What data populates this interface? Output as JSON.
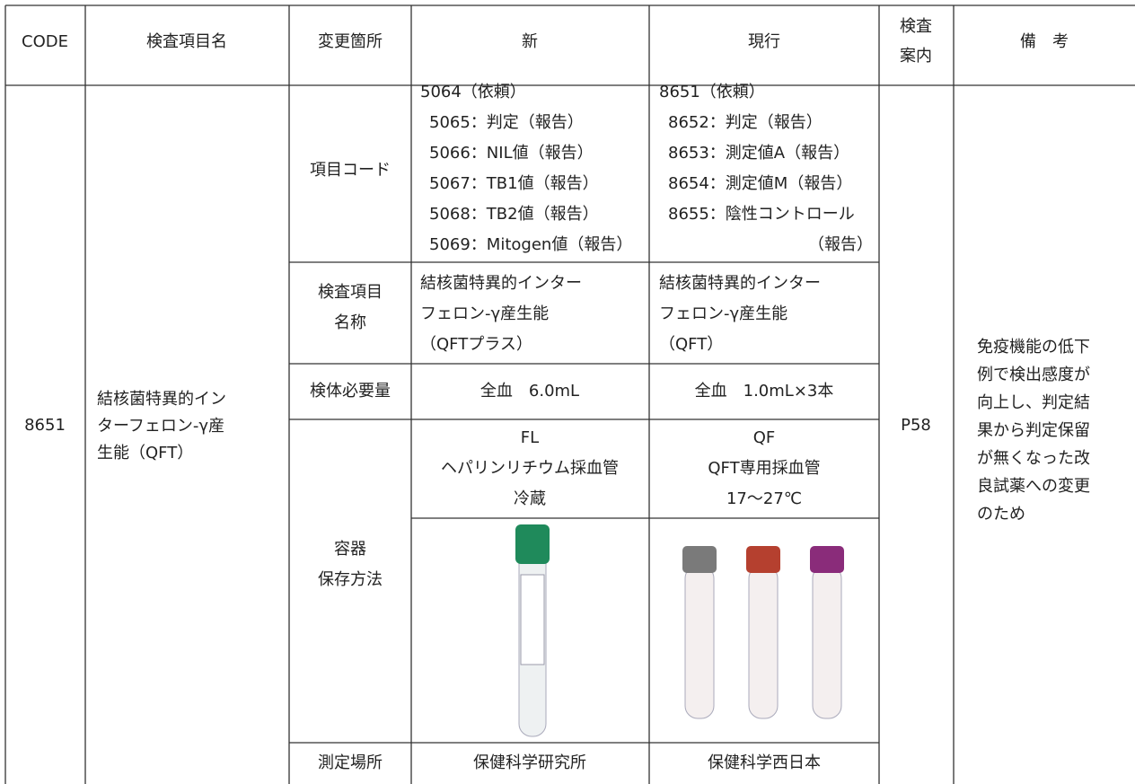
{
  "header": [
    "CODE",
    "検査項目名",
    "変更箇所",
    "新",
    "現行",
    [
      "検査",
      "案内"
    ],
    "備　考"
  ],
  "record": {
    "code": "8651",
    "name": [
      "結核菌特異的イン",
      "ターフェロン-γ産",
      "生能（QFT）"
    ],
    "guide": "P58",
    "remarks": [
      "免疫機能の低下",
      "例で検出感度が",
      "向上し、判定結",
      "果から判定保留",
      "が無くなった改",
      "良試薬への変更",
      "のため"
    ],
    "changes": [
      {
        "field": [
          "項目コード"
        ],
        "new": [
          "5064（依頼）",
          "5065：判定（報告）",
          "5066：NIL値（報告）",
          "5067：TB1値（報告）",
          "5068：TB2値（報告）",
          "5069：Mitogen値（報告）"
        ],
        "current": [
          "8651（依頼）",
          "8652：判定（報告）",
          "8653：測定値A（報告）",
          "8654：測定値M（報告）",
          "8655：陰性コントロール",
          "（報告）"
        ]
      },
      {
        "field": [
          "検査項目",
          "名称"
        ],
        "new": [
          "結核菌特異的インター",
          "フェロン-γ産生能",
          "（QFTプラス）"
        ],
        "current": [
          "結核菌特異的インター",
          "フェロン-γ産生能",
          "（QFT）"
        ]
      },
      {
        "field": [
          "検体必要量"
        ],
        "new": [
          "全血　6.0mL"
        ],
        "current": [
          "全血　1.0mL×3本"
        ]
      },
      {
        "field": [
          "容器",
          "保存方法"
        ],
        "new": [
          "FL",
          "ヘパリンリチウム採血管",
          "冷蔵"
        ],
        "current": [
          "QF",
          "QFT専用採血管",
          "17～27℃"
        ]
      },
      {
        "field": [
          "測定場所"
        ],
        "new": [
          "保健科学研究所"
        ],
        "current": [
          "保健科学西日本"
        ]
      }
    ]
  }
}
